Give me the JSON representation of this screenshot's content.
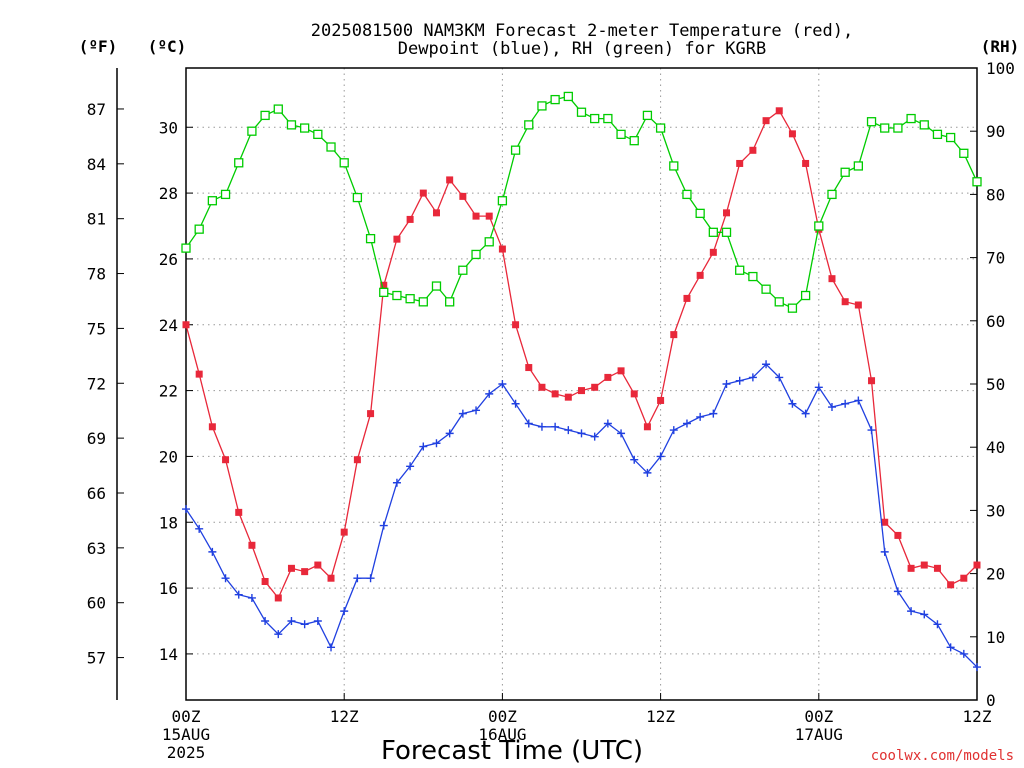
{
  "chart_data": {
    "type": "line",
    "title_line1": "2025081500 NAM3KM Forecast 2-meter Temperature (red),",
    "title_line2": "Dewpoint (blue), RH (green) for KGRB",
    "xlabel": "Forecast Time (UTC)",
    "credit": "coolwx.com/models",
    "units": {
      "f": "(ºF)",
      "c": "(ºC)",
      "rh": "(RH)"
    },
    "x_start_hour": 0,
    "x_end_hour": 60,
    "x_ticks": [
      {
        "hour": 0,
        "lines": [
          "00Z",
          "15AUG",
          "2025"
        ]
      },
      {
        "hour": 12,
        "lines": [
          "12Z"
        ]
      },
      {
        "hour": 24,
        "lines": [
          "00Z",
          "16AUG"
        ]
      },
      {
        "hour": 36,
        "lines": [
          "12Z"
        ]
      },
      {
        "hour": 48,
        "lines": [
          "00Z",
          "17AUG"
        ]
      },
      {
        "hour": 60,
        "lines": [
          "12Z"
        ]
      }
    ],
    "c_ticks": [
      "14",
      "16",
      "18",
      "20",
      "22",
      "24",
      "26",
      "28",
      "30"
    ],
    "f_ticks": [
      "57",
      "60",
      "63",
      "66",
      "69",
      "72",
      "75",
      "78",
      "81",
      "84",
      "87"
    ],
    "rh_ticks": [
      "0",
      "10",
      "20",
      "30",
      "40",
      "50",
      "60",
      "70",
      "80",
      "90",
      "100"
    ],
    "ylim_c": [
      12.6,
      31.8
    ],
    "ylim_rh": [
      0,
      100
    ],
    "grid": true,
    "colors": {
      "temperature": "#e8283a",
      "dewpoint": "#2040e0",
      "rh": "#00cc00"
    },
    "series": [
      {
        "key": "temperature",
        "axis": "c",
        "marker": "filled-square",
        "values": [
          24.0,
          22.5,
          20.9,
          19.9,
          18.3,
          17.3,
          16.2,
          15.7,
          16.6,
          16.5,
          16.7,
          16.3,
          17.7,
          19.9,
          21.3,
          25.2,
          26.6,
          27.2,
          28.0,
          27.4,
          28.4,
          27.9,
          27.3,
          27.3,
          26.3,
          24.0,
          22.7,
          22.1,
          21.9,
          21.8,
          22.0,
          22.1,
          22.4,
          22.6,
          21.9,
          20.9,
          21.7,
          23.7,
          24.8,
          25.5,
          26.2,
          27.4,
          28.9,
          29.3,
          30.2,
          30.5,
          29.8,
          28.9,
          26.9,
          25.4,
          24.7,
          24.6,
          22.3,
          18.0,
          17.6,
          16.6,
          16.7,
          16.6,
          16.1,
          16.3,
          16.7
        ]
      },
      {
        "key": "dewpoint",
        "axis": "c",
        "marker": "plus",
        "values": [
          18.4,
          17.8,
          17.1,
          16.3,
          15.8,
          15.7,
          15.0,
          14.6,
          15.0,
          14.9,
          15.0,
          14.2,
          15.3,
          16.3,
          16.3,
          17.9,
          19.2,
          19.7,
          20.3,
          20.4,
          20.7,
          21.3,
          21.4,
          21.9,
          22.2,
          21.6,
          21.0,
          20.9,
          20.9,
          20.8,
          20.7,
          20.6,
          21.0,
          20.7,
          19.9,
          19.5,
          20.0,
          20.8,
          21.0,
          21.2,
          21.3,
          22.2,
          22.3,
          22.4,
          22.8,
          22.4,
          21.6,
          21.3,
          22.1,
          21.5,
          21.6,
          21.7,
          20.8,
          17.1,
          15.9,
          15.3,
          15.2,
          14.9,
          14.2,
          14.0,
          13.6
        ]
      },
      {
        "key": "rh",
        "axis": "rh",
        "marker": "open-square",
        "values": [
          71.5,
          74.5,
          79,
          80,
          85,
          90,
          92.5,
          93.5,
          91,
          90.5,
          89.5,
          87.5,
          85,
          79.5,
          73,
          64.5,
          64,
          63.5,
          63,
          65.5,
          63,
          68,
          70.5,
          72.5,
          79,
          87,
          91,
          94,
          95,
          95.5,
          93,
          92,
          92,
          89.5,
          88.5,
          92.5,
          90.5,
          84.5,
          80,
          77,
          74,
          74,
          68,
          67,
          65,
          63,
          62,
          64,
          75,
          80,
          83.5,
          84.5,
          91.5,
          90.5,
          90.5,
          92,
          91,
          89.5,
          89,
          86.5,
          82
        ]
      }
    ]
  }
}
